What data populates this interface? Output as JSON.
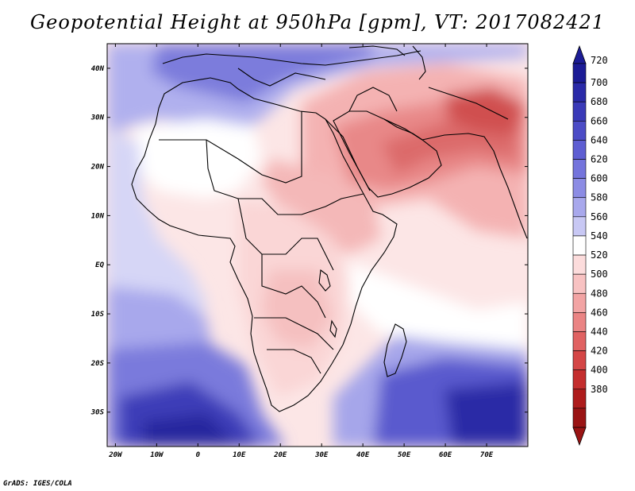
{
  "title": "Geopotential Height at 950hPa [gpm], VT: 2017082421",
  "credit": "GrADS: IGES/COLA",
  "map": {
    "lat_labels": [
      "40N",
      "30N",
      "20N",
      "10N",
      "EQ",
      "10S",
      "20S",
      "30S"
    ],
    "lon_labels": [
      "20W",
      "10W",
      "0",
      "10E",
      "20E",
      "30E",
      "40E",
      "50E",
      "60E",
      "70E"
    ],
    "lat_values": [
      40,
      30,
      20,
      10,
      0,
      -10,
      -20,
      -30
    ],
    "lon_values": [
      -20,
      -10,
      0,
      10,
      20,
      30,
      40,
      50,
      60,
      70
    ],
    "lon_range": [
      -22,
      80
    ],
    "lat_range": [
      -37,
      45
    ]
  },
  "colorbar": {
    "levels": [
      "720",
      "700",
      "680",
      "660",
      "640",
      "620",
      "600",
      "580",
      "560",
      "540",
      "520",
      "500",
      "480",
      "460",
      "440",
      "420",
      "400",
      "380"
    ],
    "colors": [
      "#1c1c96",
      "#2a2aa8",
      "#3a3ab8",
      "#4c4cc6",
      "#5e5ed2",
      "#7474dc",
      "#8c8ce4",
      "#a8a8ec",
      "#c8c8f4",
      "#ffffff",
      "#fcdcdc",
      "#f8c2c2",
      "#f2a4a4",
      "#ea8484",
      "#e06262",
      "#d44646",
      "#c42e2e",
      "#ae1c1c",
      "#9a1414"
    ]
  }
}
